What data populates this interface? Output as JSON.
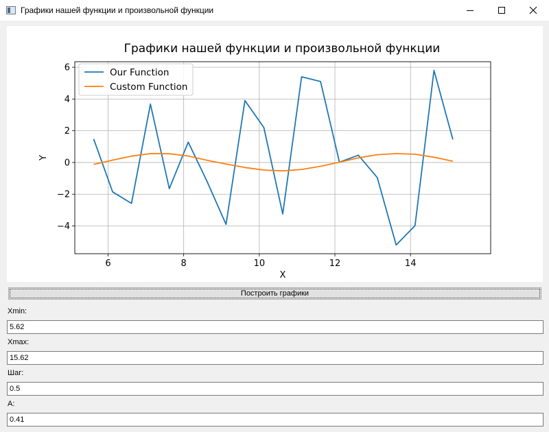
{
  "window": {
    "title": "Графики нашей функции и произвольной функции"
  },
  "chart_data": {
    "type": "line",
    "title": "Графики нашей функции и произвольной функции",
    "xlabel": "X",
    "ylabel": "Y",
    "xlim": [
      5.12,
      16.12
    ],
    "ylim": [
      -5.75,
      6.35
    ],
    "xticks": [
      6,
      8,
      10,
      12,
      14
    ],
    "yticks": [
      6,
      4,
      2,
      0,
      -2,
      -4
    ],
    "x_tick_labels": [
      "6",
      "8",
      "10",
      "12",
      "14"
    ],
    "y_tick_labels": [
      "6",
      "4",
      "2",
      "0",
      "−2",
      "−4"
    ],
    "grid": true,
    "legend_position": "upper-left",
    "x": [
      5.62,
      6.12,
      6.62,
      7.12,
      7.62,
      8.12,
      8.62,
      9.12,
      9.62,
      10.12,
      10.62,
      11.12,
      11.62,
      12.12,
      12.62,
      13.12,
      13.62,
      14.12,
      14.62,
      15.12
    ],
    "series": [
      {
        "name": "Our Function",
        "color": "#1f77b4",
        "values": [
          1.48,
          -1.85,
          -2.58,
          3.68,
          -1.65,
          1.28,
          -1.2,
          -3.9,
          3.9,
          2.2,
          -3.25,
          5.4,
          5.1,
          0.02,
          0.46,
          -0.95,
          -5.2,
          -3.98,
          5.8,
          1.45
        ]
      },
      {
        "name": "Custom Function",
        "color": "#ff7f0e",
        "values": [
          -0.12,
          0.15,
          0.4,
          0.56,
          0.55,
          0.41,
          0.14,
          -0.1,
          -0.32,
          -0.48,
          -0.53,
          -0.44,
          -0.24,
          0.02,
          0.29,
          0.49,
          0.56,
          0.52,
          0.33,
          0.08
        ]
      }
    ]
  },
  "controls": {
    "plot_button_label": "Построить графики",
    "xmin_label": "Xmin:",
    "xmin_value": "5.62",
    "xmax_label": "Xmax:",
    "xmax_value": "15.62",
    "step_label": "Шаг:",
    "step_value": "0.5",
    "a_label": "A:",
    "a_value": "0.41"
  }
}
